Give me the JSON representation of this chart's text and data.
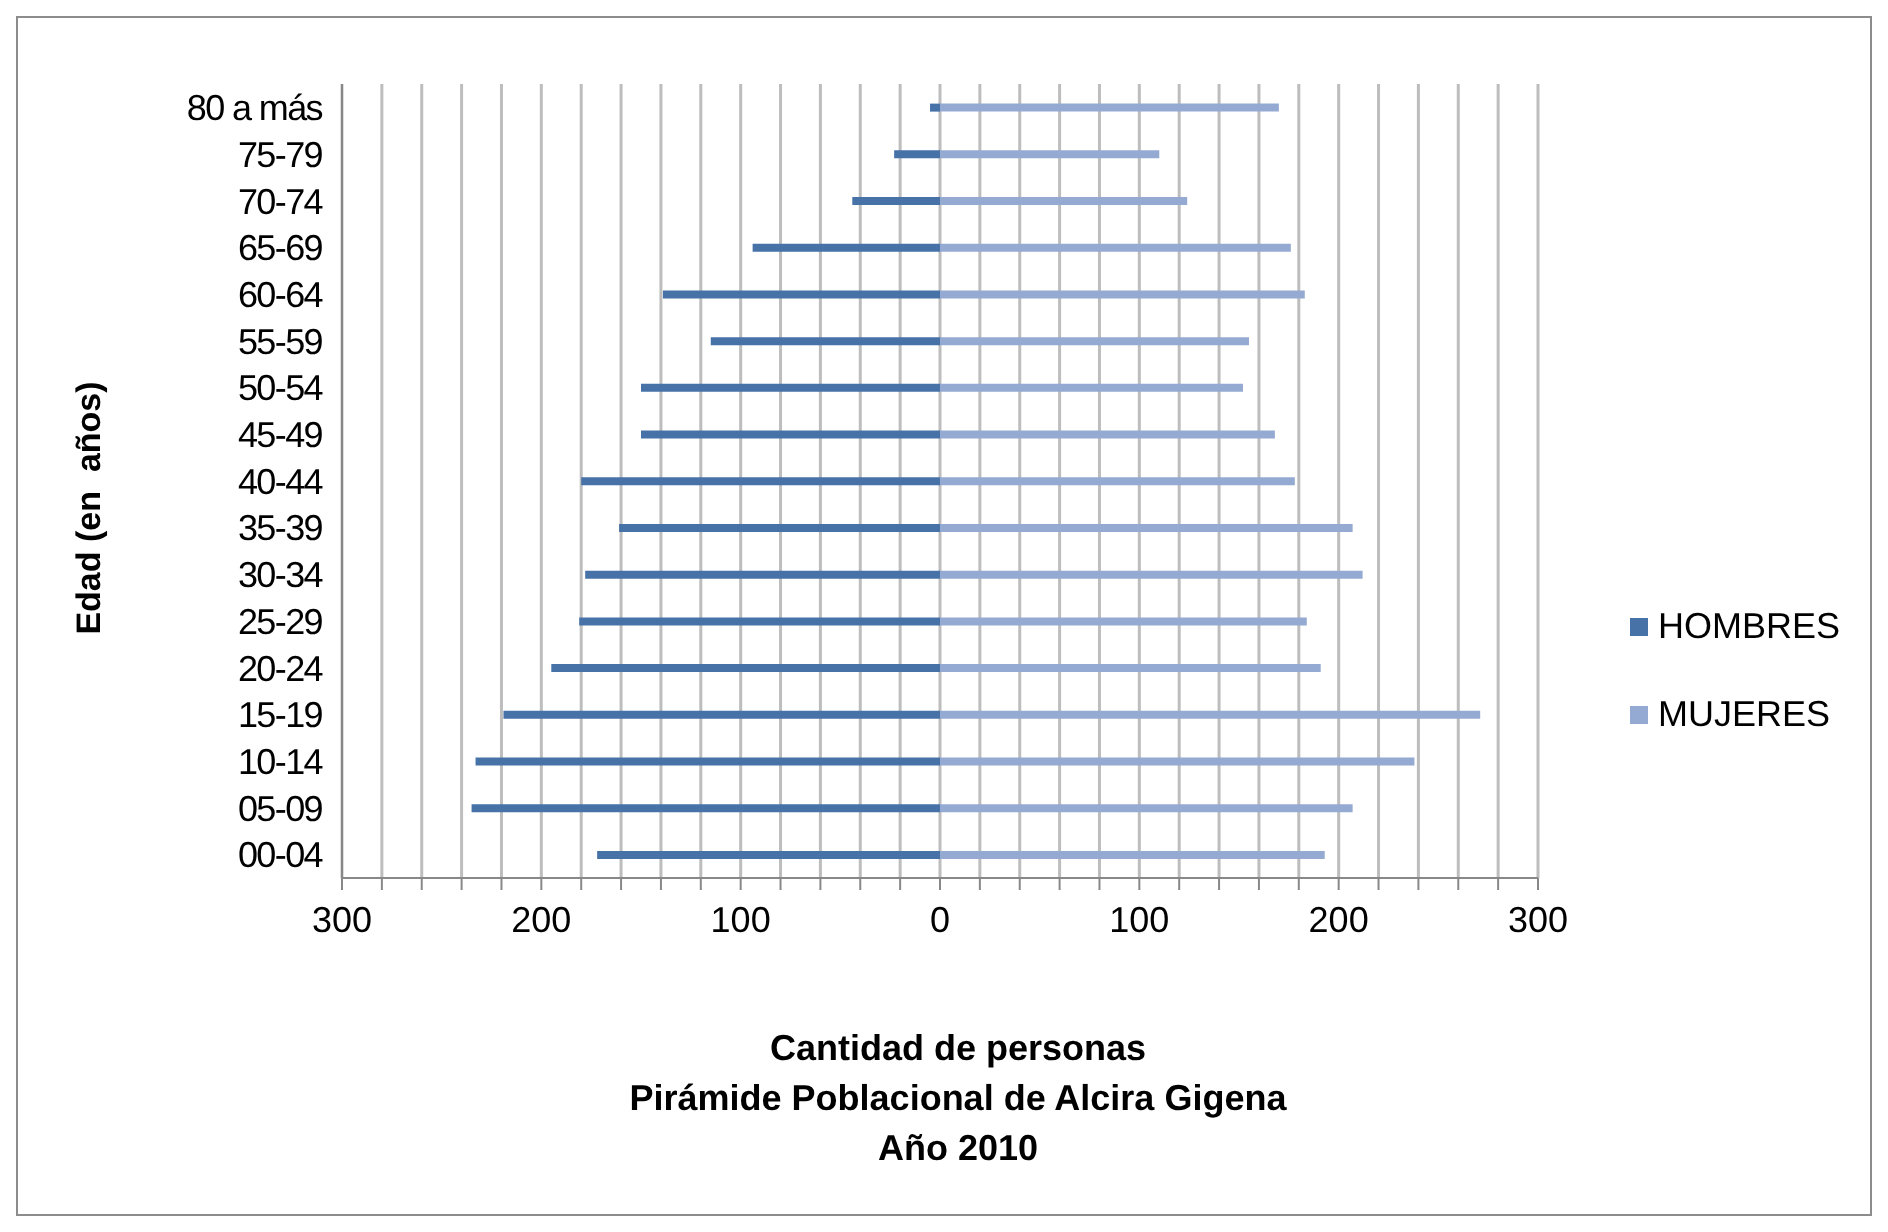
{
  "chart_data": {
    "type": "bar",
    "orientation": "horizontal",
    "stacked": true,
    "title": "Pirámide Poblacional de Alcira Gigena",
    "subtitle": "Año 2010",
    "xlabel": "Cantidad de personas",
    "ylabel": "Edad (en  años)",
    "categories": [
      "80 a más",
      "75-79",
      "70-74",
      "65-69",
      "60-64",
      "55-59",
      "50-54",
      "45-49",
      "40-44",
      "35-39",
      "30-34",
      "25-29",
      "20-24",
      "15-19",
      "10-14",
      "05-09",
      "00-04"
    ],
    "series": [
      {
        "name": "HOMBRES",
        "color": "#4672a8",
        "values": [
          -5,
          -23,
          -44,
          -94,
          -139,
          -115,
          -150,
          -150,
          -180,
          -161,
          -178,
          -181,
          -195,
          -219,
          -233,
          -235,
          -172
        ]
      },
      {
        "name": "MUJERES",
        "color": "#94aad2",
        "values": [
          170,
          110,
          124,
          176,
          183,
          155,
          152,
          168,
          178,
          207,
          212,
          184,
          191,
          271,
          238,
          207,
          193
        ]
      }
    ],
    "xlim": [
      -300,
      300
    ],
    "xticks": [
      {
        "value": -300,
        "label": "300"
      },
      {
        "value": -280,
        "label": null
      },
      {
        "value": -260,
        "label": null
      },
      {
        "value": -240,
        "label": null
      },
      {
        "value": -220,
        "label": null
      },
      {
        "value": -200,
        "label": "200"
      },
      {
        "value": -180,
        "label": null
      },
      {
        "value": -160,
        "label": null
      },
      {
        "value": -140,
        "label": null
      },
      {
        "value": -120,
        "label": null
      },
      {
        "value": -100,
        "label": "100"
      },
      {
        "value": -80,
        "label": null
      },
      {
        "value": -60,
        "label": null
      },
      {
        "value": -40,
        "label": null
      },
      {
        "value": -20,
        "label": null
      },
      0,
      {
        "value": 20,
        "label": null
      },
      {
        "value": 40,
        "label": null
      },
      {
        "value": 60,
        "label": null
      },
      {
        "value": 80,
        "label": null
      },
      100,
      {
        "value": 120,
        "label": null
      },
      {
        "value": 140,
        "label": null
      },
      {
        "value": 160,
        "label": null
      },
      {
        "value": 180,
        "label": null
      },
      200,
      {
        "value": 220,
        "label": null
      },
      {
        "value": 240,
        "label": null
      },
      {
        "value": 260,
        "label": null
      },
      {
        "value": 280,
        "label": null
      },
      300
    ],
    "grid": "x",
    "legend": "right"
  }
}
